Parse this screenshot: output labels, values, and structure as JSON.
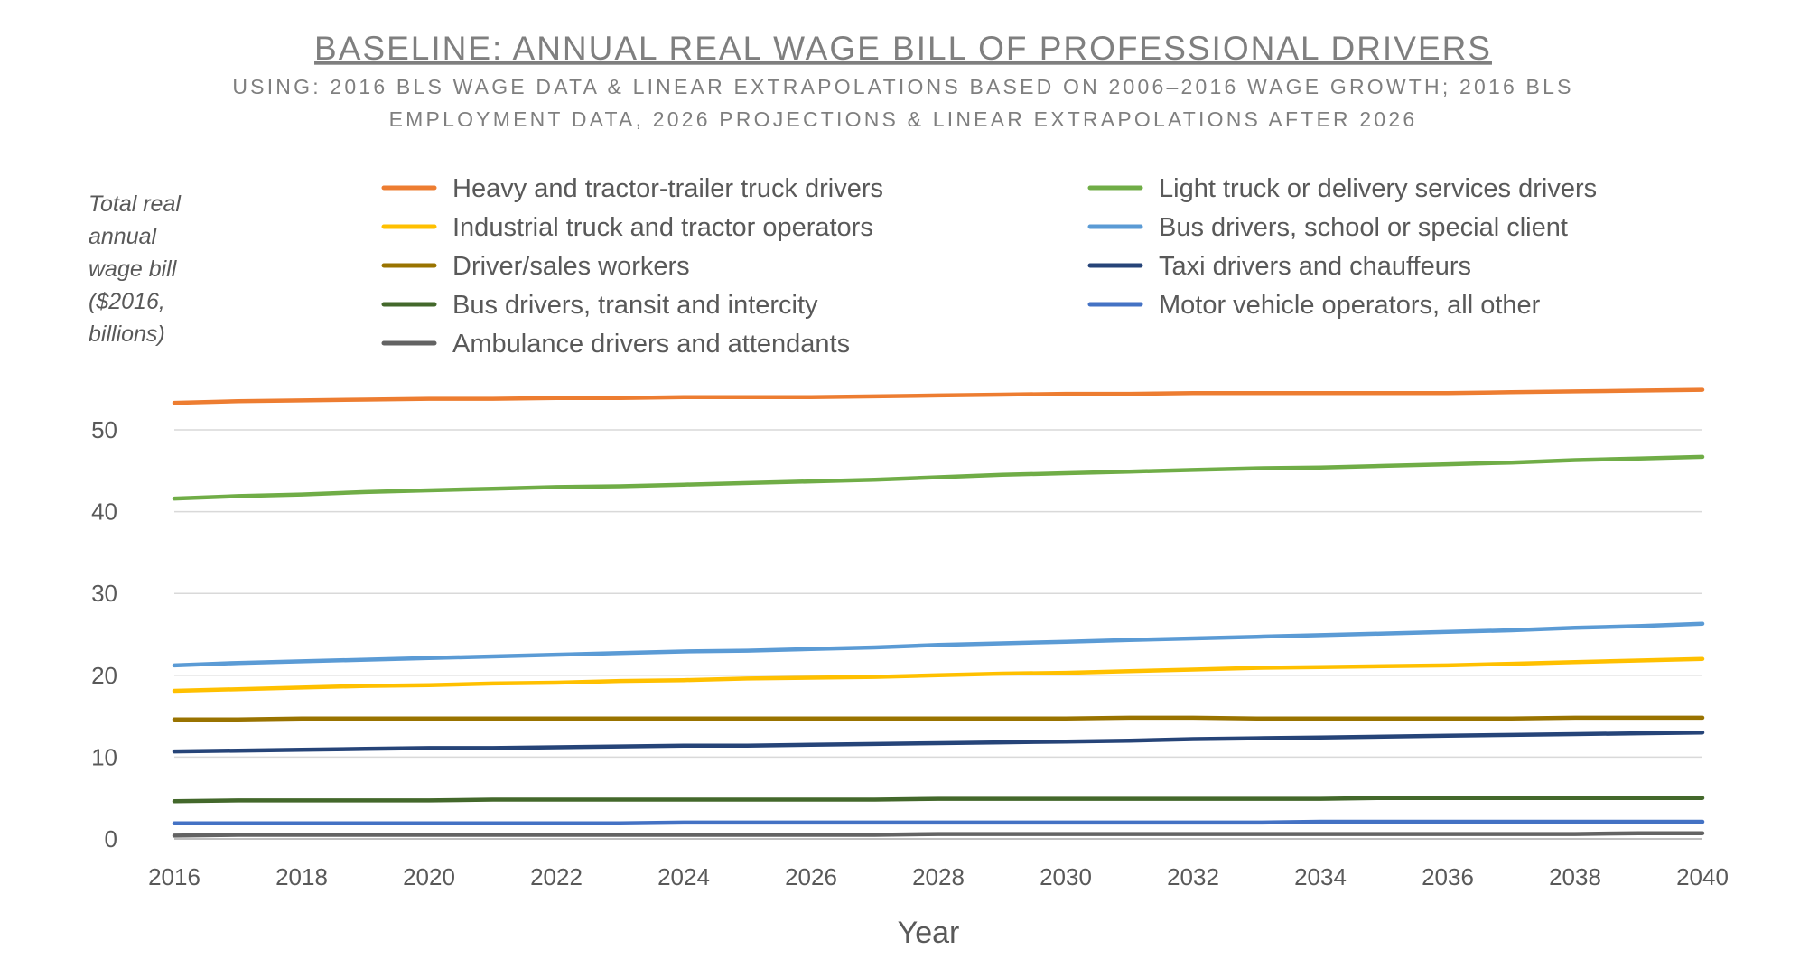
{
  "chart_data": {
    "type": "line",
    "title": "BASELINE: ANNUAL REAL WAGE BILL OF PROFESSIONAL DRIVERS",
    "subtitle_lines": [
      "USING: 2016 BLS WAGE DATA & LINEAR EXTRAPOLATIONS BASED ON 2006–2016 WAGE GROWTH; 2016 BLS",
      "EMPLOYMENT DATA, 2026 PROJECTIONS & LINEAR EXTRAPOLATIONS AFTER 2026"
    ],
    "ylabel_lines": [
      "Total real",
      "annual",
      "wage bill",
      "($2016,",
      "billions)"
    ],
    "xlabel": "Year",
    "x": [
      2016,
      2017,
      2018,
      2019,
      2020,
      2021,
      2022,
      2023,
      2024,
      2025,
      2026,
      2027,
      2028,
      2029,
      2030,
      2031,
      2032,
      2033,
      2034,
      2035,
      2036,
      2037,
      2038,
      2039,
      2040
    ],
    "x_ticks": [
      2016,
      2018,
      2020,
      2022,
      2024,
      2026,
      2028,
      2030,
      2032,
      2034,
      2036,
      2038,
      2040
    ],
    "y_ticks": [
      0,
      10,
      20,
      30,
      40,
      50
    ],
    "xlim": [
      2016,
      2040
    ],
    "ylim": [
      0,
      50
    ],
    "grid": "horizontal",
    "legend_position": "top",
    "series": [
      {
        "name": "Heavy and tractor-trailer truck drivers",
        "color": "#ED7D31",
        "values": [
          53.3,
          53.5,
          53.6,
          53.7,
          53.8,
          53.8,
          53.9,
          53.9,
          54.0,
          54.0,
          54.0,
          54.1,
          54.2,
          54.3,
          54.4,
          54.4,
          54.5,
          54.5,
          54.5,
          54.5,
          54.5,
          54.6,
          54.7,
          54.8,
          54.9
        ]
      },
      {
        "name": "Light truck or delivery services drivers",
        "color": "#70AD47",
        "values": [
          41.6,
          41.9,
          42.1,
          42.4,
          42.6,
          42.8,
          43.0,
          43.1,
          43.3,
          43.5,
          43.7,
          43.9,
          44.2,
          44.5,
          44.7,
          44.9,
          45.1,
          45.3,
          45.4,
          45.6,
          45.8,
          46.0,
          46.3,
          46.5,
          46.7
        ]
      },
      {
        "name": "Industrial truck and tractor operators",
        "color": "#FFC000",
        "values": [
          18.1,
          18.3,
          18.5,
          18.7,
          18.8,
          19.0,
          19.1,
          19.3,
          19.4,
          19.6,
          19.7,
          19.8,
          20.0,
          20.2,
          20.3,
          20.5,
          20.7,
          20.9,
          21.0,
          21.1,
          21.2,
          21.4,
          21.6,
          21.8,
          22.0
        ]
      },
      {
        "name": "Bus drivers, school or special client",
        "color": "#5B9BD5",
        "values": [
          21.2,
          21.5,
          21.7,
          21.9,
          22.1,
          22.3,
          22.5,
          22.7,
          22.9,
          23.0,
          23.2,
          23.4,
          23.7,
          23.9,
          24.1,
          24.3,
          24.5,
          24.7,
          24.9,
          25.1,
          25.3,
          25.5,
          25.8,
          26.0,
          26.3
        ]
      },
      {
        "name": "Driver/sales workers",
        "color": "#997300",
        "values": [
          14.6,
          14.6,
          14.7,
          14.7,
          14.7,
          14.7,
          14.7,
          14.7,
          14.7,
          14.7,
          14.7,
          14.7,
          14.7,
          14.7,
          14.7,
          14.8,
          14.8,
          14.7,
          14.7,
          14.7,
          14.7,
          14.7,
          14.8,
          14.8,
          14.8
        ]
      },
      {
        "name": "Taxi drivers and chauffeurs",
        "color": "#264478",
        "values": [
          10.7,
          10.8,
          10.9,
          11.0,
          11.1,
          11.1,
          11.2,
          11.3,
          11.4,
          11.4,
          11.5,
          11.6,
          11.7,
          11.8,
          11.9,
          12.0,
          12.2,
          12.3,
          12.4,
          12.5,
          12.6,
          12.7,
          12.8,
          12.9,
          13.0
        ]
      },
      {
        "name": "Bus drivers, transit and intercity",
        "color": "#43682B",
        "values": [
          4.6,
          4.7,
          4.7,
          4.7,
          4.7,
          4.8,
          4.8,
          4.8,
          4.8,
          4.8,
          4.8,
          4.8,
          4.9,
          4.9,
          4.9,
          4.9,
          4.9,
          4.9,
          4.9,
          5.0,
          5.0,
          5.0,
          5.0,
          5.0,
          5.0
        ]
      },
      {
        "name": "Motor vehicle operators, all other",
        "color": "#4472C4",
        "values": [
          1.9,
          1.9,
          1.9,
          1.9,
          1.9,
          1.9,
          1.9,
          1.9,
          2.0,
          2.0,
          2.0,
          2.0,
          2.0,
          2.0,
          2.0,
          2.0,
          2.0,
          2.0,
          2.1,
          2.1,
          2.1,
          2.1,
          2.1,
          2.1,
          2.1
        ]
      },
      {
        "name": "Ambulance drivers and attendants",
        "color": "#636363",
        "values": [
          0.4,
          0.5,
          0.5,
          0.5,
          0.5,
          0.5,
          0.5,
          0.5,
          0.5,
          0.5,
          0.5,
          0.5,
          0.6,
          0.6,
          0.6,
          0.6,
          0.6,
          0.6,
          0.6,
          0.6,
          0.6,
          0.6,
          0.6,
          0.7,
          0.7
        ]
      }
    ]
  }
}
